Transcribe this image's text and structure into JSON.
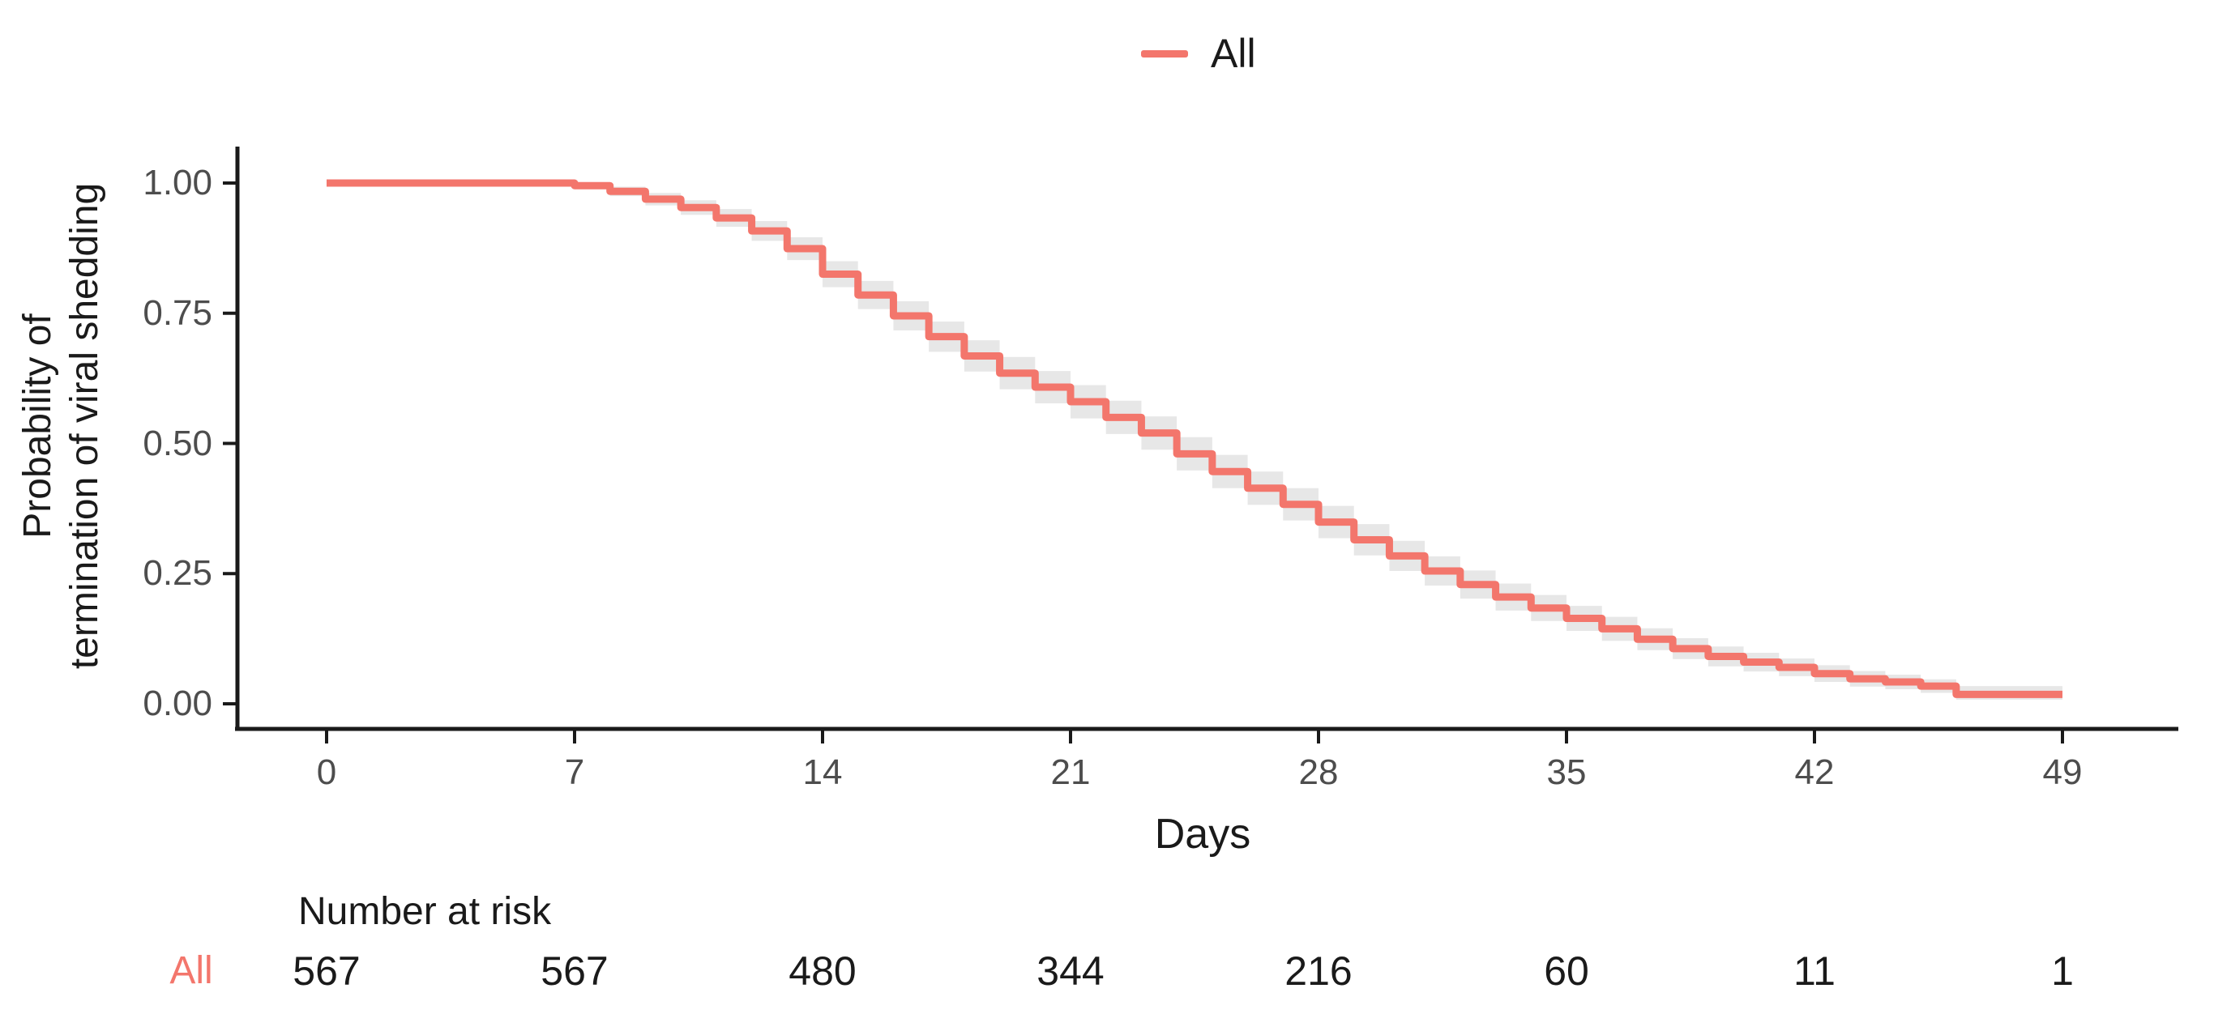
{
  "legend": {
    "label": "All",
    "color": "#f3766c"
  },
  "risk_table": {
    "header": "Number at risk",
    "days": [
      0,
      7,
      14,
      21,
      28,
      35,
      42,
      49
    ],
    "rows": [
      {
        "label": "All",
        "color": "#f3766c",
        "values": [
          "567",
          "567",
          "480",
          "344",
          "216",
          "60",
          "11",
          "1"
        ]
      }
    ]
  },
  "chart_data": {
    "type": "line",
    "subtype": "kaplan_meier_step",
    "title": "",
    "xlabel": "Days",
    "ylabel": "Probability of termination of viral shedding",
    "ylabel_lines": [
      "Probability of",
      "termination of viral shedding"
    ],
    "xlim": [
      0,
      49
    ],
    "ylim": [
      0.0,
      1.0
    ],
    "xticks": [
      0,
      7,
      14,
      21,
      28,
      35,
      42,
      49
    ],
    "yticks": [
      "1.00",
      "0.75",
      "0.50",
      "0.25",
      "0.00"
    ],
    "grid": false,
    "legend_position": "top",
    "colors": {
      "series": "#f3766c",
      "confidence_band": "#e7e7e7",
      "axis": "#1a1a1a",
      "tick_text": "#4d4d4d"
    },
    "series": [
      {
        "name": "All",
        "color": "#f3766c",
        "ci_color": "#e7e7e7",
        "steps_format": [
          "day",
          "survival",
          "ci_lower",
          "ci_upper"
        ],
        "steps": [
          [
            0,
            1.0,
            1.0,
            1.0
          ],
          [
            7,
            0.995,
            0.989,
            1.0
          ],
          [
            8,
            0.984,
            0.975,
            0.993
          ],
          [
            9,
            0.969,
            0.957,
            0.981
          ],
          [
            10,
            0.953,
            0.939,
            0.967
          ],
          [
            11,
            0.933,
            0.916,
            0.95
          ],
          [
            12,
            0.908,
            0.889,
            0.927
          ],
          [
            13,
            0.874,
            0.852,
            0.896
          ],
          [
            14,
            0.825,
            0.8,
            0.85
          ],
          [
            15,
            0.785,
            0.758,
            0.812
          ],
          [
            16,
            0.745,
            0.717,
            0.773
          ],
          [
            17,
            0.705,
            0.676,
            0.734
          ],
          [
            18,
            0.668,
            0.638,
            0.698
          ],
          [
            19,
            0.635,
            0.604,
            0.666
          ],
          [
            20,
            0.608,
            0.577,
            0.639
          ],
          [
            21,
            0.58,
            0.548,
            0.612
          ],
          [
            22,
            0.55,
            0.518,
            0.582
          ],
          [
            23,
            0.52,
            0.488,
            0.552
          ],
          [
            24,
            0.48,
            0.448,
            0.512
          ],
          [
            25,
            0.446,
            0.414,
            0.478
          ],
          [
            26,
            0.414,
            0.382,
            0.446
          ],
          [
            27,
            0.383,
            0.352,
            0.414
          ],
          [
            28,
            0.349,
            0.318,
            0.38
          ],
          [
            29,
            0.315,
            0.285,
            0.345
          ],
          [
            30,
            0.284,
            0.255,
            0.313
          ],
          [
            31,
            0.255,
            0.227,
            0.283
          ],
          [
            32,
            0.229,
            0.202,
            0.256
          ],
          [
            33,
            0.205,
            0.179,
            0.231
          ],
          [
            34,
            0.184,
            0.159,
            0.209
          ],
          [
            35,
            0.164,
            0.14,
            0.188
          ],
          [
            36,
            0.144,
            0.121,
            0.167
          ],
          [
            37,
            0.124,
            0.103,
            0.145
          ],
          [
            38,
            0.106,
            0.086,
            0.126
          ],
          [
            39,
            0.091,
            0.072,
            0.11
          ],
          [
            40,
            0.08,
            0.062,
            0.098
          ],
          [
            41,
            0.07,
            0.053,
            0.087
          ],
          [
            42,
            0.058,
            0.042,
            0.074
          ],
          [
            43,
            0.048,
            0.033,
            0.063
          ],
          [
            44,
            0.042,
            0.028,
            0.056
          ],
          [
            45,
            0.034,
            0.021,
            0.047
          ],
          [
            46,
            0.018,
            0.008,
            0.034
          ],
          [
            49,
            0.018,
            0.008,
            0.034
          ]
        ]
      }
    ]
  }
}
